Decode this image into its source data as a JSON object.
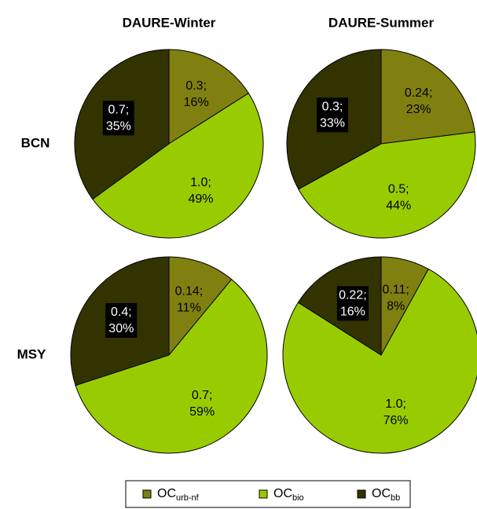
{
  "column_titles": [
    "DAURE-Winter",
    "DAURE-Summer"
  ],
  "row_labels": [
    "BCN",
    "MSY"
  ],
  "legend": [
    {
      "label": "OC",
      "sub": "urb-nf",
      "color": "#808010"
    },
    {
      "label": "OC",
      "sub": "bio",
      "color": "#99cc00"
    },
    {
      "label": "OC",
      "sub": "bb",
      "color": "#333300"
    }
  ],
  "chart_data": [
    {
      "type": "pie",
      "values": [
        16,
        49,
        35
      ],
      "value_labels": [
        "16%",
        "49%",
        "35%"
      ],
      "amount_labels": [
        "0.3;",
        "1.0;",
        "0.7;"
      ],
      "colors": [
        "#808010",
        "#99cc00",
        "#333300"
      ],
      "label_colors": [
        "#000000",
        "#000000",
        "#ffffff"
      ],
      "label_backgrounds": [
        null,
        null,
        "#000000"
      ]
    },
    {
      "type": "pie",
      "values": [
        23,
        44,
        33
      ],
      "value_labels": [
        "23%",
        "44%",
        "33%"
      ],
      "amount_labels": [
        "0.24;",
        "0.5;",
        "0.3;"
      ],
      "colors": [
        "#808010",
        "#99cc00",
        "#333300"
      ],
      "label_colors": [
        "#000000",
        "#000000",
        "#ffffff"
      ],
      "label_backgrounds": [
        null,
        null,
        "#000000"
      ]
    },
    {
      "type": "pie",
      "values": [
        11,
        59,
        30
      ],
      "value_labels": [
        "11%",
        "59%",
        "30%"
      ],
      "amount_labels": [
        "0.14;",
        "0.7;",
        "0.4;"
      ],
      "colors": [
        "#808010",
        "#99cc00",
        "#333300"
      ],
      "label_colors": [
        "#000000",
        "#000000",
        "#ffffff"
      ],
      "label_backgrounds": [
        null,
        null,
        "#000000"
      ]
    },
    {
      "type": "pie",
      "values": [
        8,
        76,
        16
      ],
      "value_labels": [
        "8%",
        "76%",
        "16%"
      ],
      "amount_labels": [
        "0.11;",
        "1.0;",
        "0.22;"
      ],
      "colors": [
        "#808010",
        "#99cc00",
        "#333300"
      ],
      "label_colors": [
        "#000000",
        "#000000",
        "#ffffff"
      ],
      "label_backgrounds": [
        null,
        null,
        "#000000"
      ]
    }
  ]
}
